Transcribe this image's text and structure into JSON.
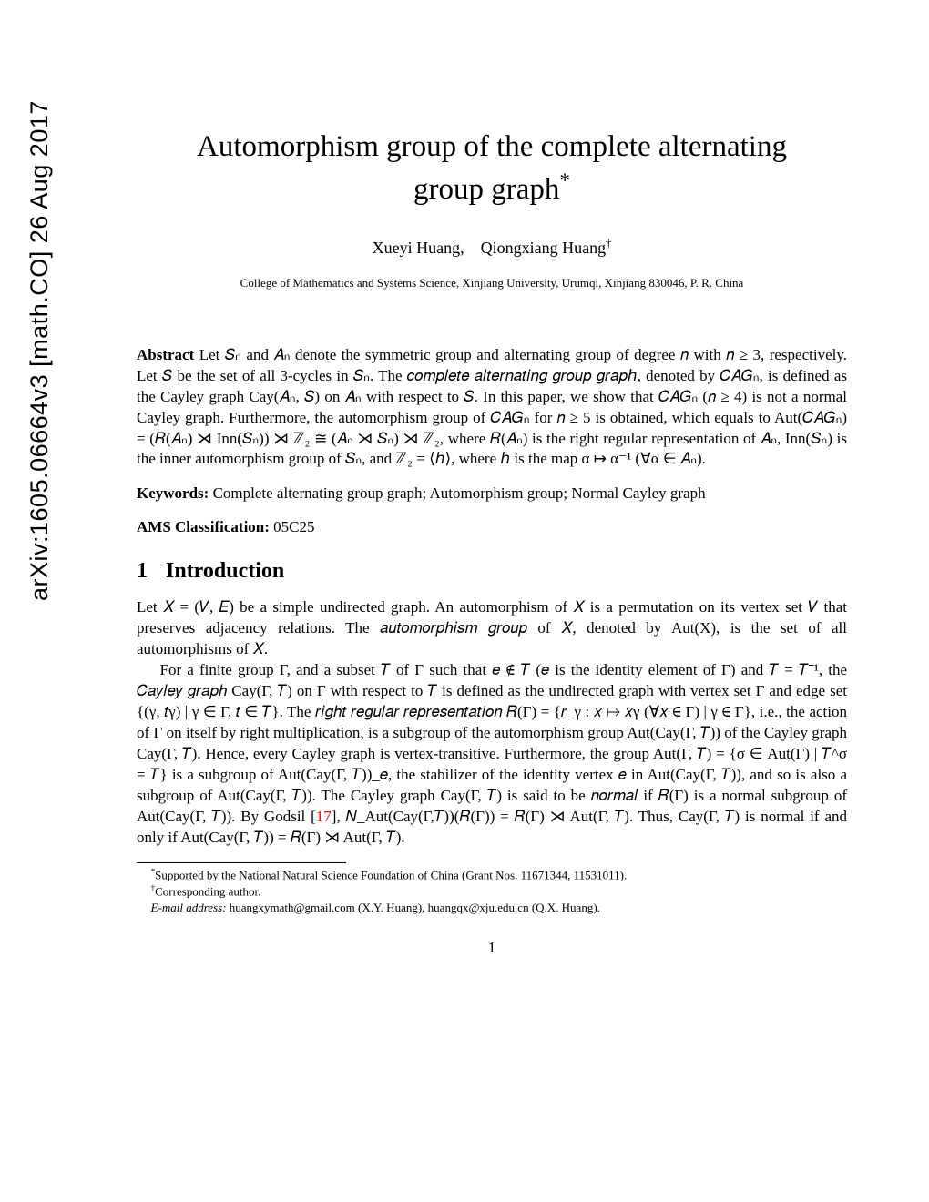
{
  "arxiv": "arXiv:1605.06664v3  [math.CO]  26 Aug 2017",
  "title_line1": "Automorphism group of the complete alternating",
  "title_line2": "group graph",
  "title_marker": "*",
  "authors": "Xueyi Huang, Qiongxiang Huang",
  "author_marker": "†",
  "affiliation": "College of Mathematics and Systems Science, Xinjiang University, Urumqi, Xinjiang 830046, P. R. China",
  "abstract_label": "Abstract",
  "abstract_text": " Let 𝑆ₙ and 𝐴ₙ denote the symmetric group and alternating group of degree 𝑛 with 𝑛 ≥ 3, respectively. Let 𝑆 be the set of all 3-cycles in 𝑆ₙ. The 𝑐𝑜𝑚𝑝𝑙𝑒𝑡𝑒 𝑎𝑙𝑡𝑒𝑟𝑛𝑎𝑡𝑖𝑛𝑔 𝑔𝑟𝑜𝑢𝑝 𝑔𝑟𝑎𝑝ℎ, denoted by 𝐶𝐴𝐺ₙ, is defined as the Cayley graph Cay(𝐴ₙ, 𝑆) on 𝐴ₙ with respect to 𝑆. In this paper, we show that 𝐶𝐴𝐺ₙ (𝑛 ≥ 4) is not a normal Cayley graph. Furthermore, the automorphism group of 𝐶𝐴𝐺ₙ for 𝑛 ≥ 5 is obtained, which equals to Aut(𝐶𝐴𝐺ₙ) = (𝑅(𝐴ₙ) ⋊ Inn(𝑆ₙ)) ⋊ ℤ₂ ≅ (𝐴ₙ ⋊ 𝑆ₙ) ⋊ ℤ₂, where 𝑅(𝐴ₙ) is the right regular representation of 𝐴ₙ, Inn(𝑆ₙ) is the inner automorphism group of 𝑆ₙ, and ℤ₂ = ⟨ℎ⟩, where ℎ is the map α ↦ α⁻¹ (∀α ∈ 𝐴ₙ).",
  "keywords_label": "Keywords:",
  "keywords_text": " Complete alternating group graph; Automorphism group; Normal Cayley graph",
  "ams_label": "AMS Classification:",
  "ams_text": " 05C25",
  "section1_num": "1",
  "section1_title": "Introduction",
  "intro_p1": "Let 𝑋 = (𝑉, 𝐸) be a simple undirected graph. An automorphism of 𝑋 is a permutation on its vertex set 𝑉 that preserves adjacency relations. The 𝑎𝑢𝑡𝑜𝑚𝑜𝑟𝑝ℎ𝑖𝑠𝑚 𝑔𝑟𝑜𝑢𝑝 of 𝑋, denoted by Aut(X), is the set of all automorphisms of 𝑋.",
  "intro_p2_a": "For a finite group Γ, and a subset 𝑇 of Γ such that 𝑒 ∉ 𝑇 (𝑒 is the identity element of Γ) and 𝑇 = 𝑇⁻¹, the 𝐶𝑎𝑦𝑙𝑒𝑦 𝑔𝑟𝑎𝑝ℎ Cay(Γ, 𝑇) on Γ with respect to 𝑇 is defined as the undirected graph with vertex set Γ and edge set {(γ, 𝑡γ) | γ ∈ Γ, 𝑡 ∈ 𝑇}. The 𝑟𝑖𝑔ℎ𝑡 𝑟𝑒𝑔𝑢𝑙𝑎𝑟 𝑟𝑒𝑝𝑟𝑒𝑠𝑒𝑛𝑡𝑎𝑡𝑖𝑜𝑛 𝑅(Γ) = {𝑟_γ : 𝑥 ↦ 𝑥γ (∀𝑥 ∈ Γ) | γ ∈ Γ}, i.e., the action of Γ on itself by right multiplication, is a subgroup of the automorphism group Aut(Cay(Γ, 𝑇)) of the Cayley graph Cay(Γ, 𝑇). Hence, every Cayley graph is vertex-transitive. Furthermore, the group Aut(Γ, 𝑇) = {σ ∈ Aut(Γ) | 𝑇^σ = 𝑇} is a subgroup of Aut(Cay(Γ, 𝑇))_𝑒, the stabilizer of the identity vertex 𝑒 in Aut(Cay(Γ, 𝑇)), and so is also a subgroup of Aut(Cay(Γ, 𝑇)). The Cayley graph Cay(Γ, 𝑇) is said to be 𝑛𝑜𝑟𝑚𝑎𝑙 if 𝑅(Γ) is a normal subgroup of Aut(Cay(Γ, 𝑇)). By Godsil [",
  "ref17": "17",
  "intro_p2_b": "], 𝑁_Aut(Cay(Γ,𝑇))(𝑅(Γ)) = 𝑅(Γ) ⋊ Aut(Γ, 𝑇). Thus, Cay(Γ, 𝑇) is normal if and only if Aut(Cay(Γ, 𝑇)) = 𝑅(Γ) ⋊ Aut(Γ, 𝑇).",
  "footnote1_marker": "*",
  "footnote1": "Supported by the National Natural Science Foundation of China (Grant Nos. 11671344, 11531011).",
  "footnote2_marker": "†",
  "footnote2": "Corresponding author.",
  "footnote3_label": "E-mail address:",
  "footnote3": " huangxymath@gmail.com (X.Y. Huang), huangqx@xju.edu.cn (Q.X. Huang).",
  "page_number": "1"
}
